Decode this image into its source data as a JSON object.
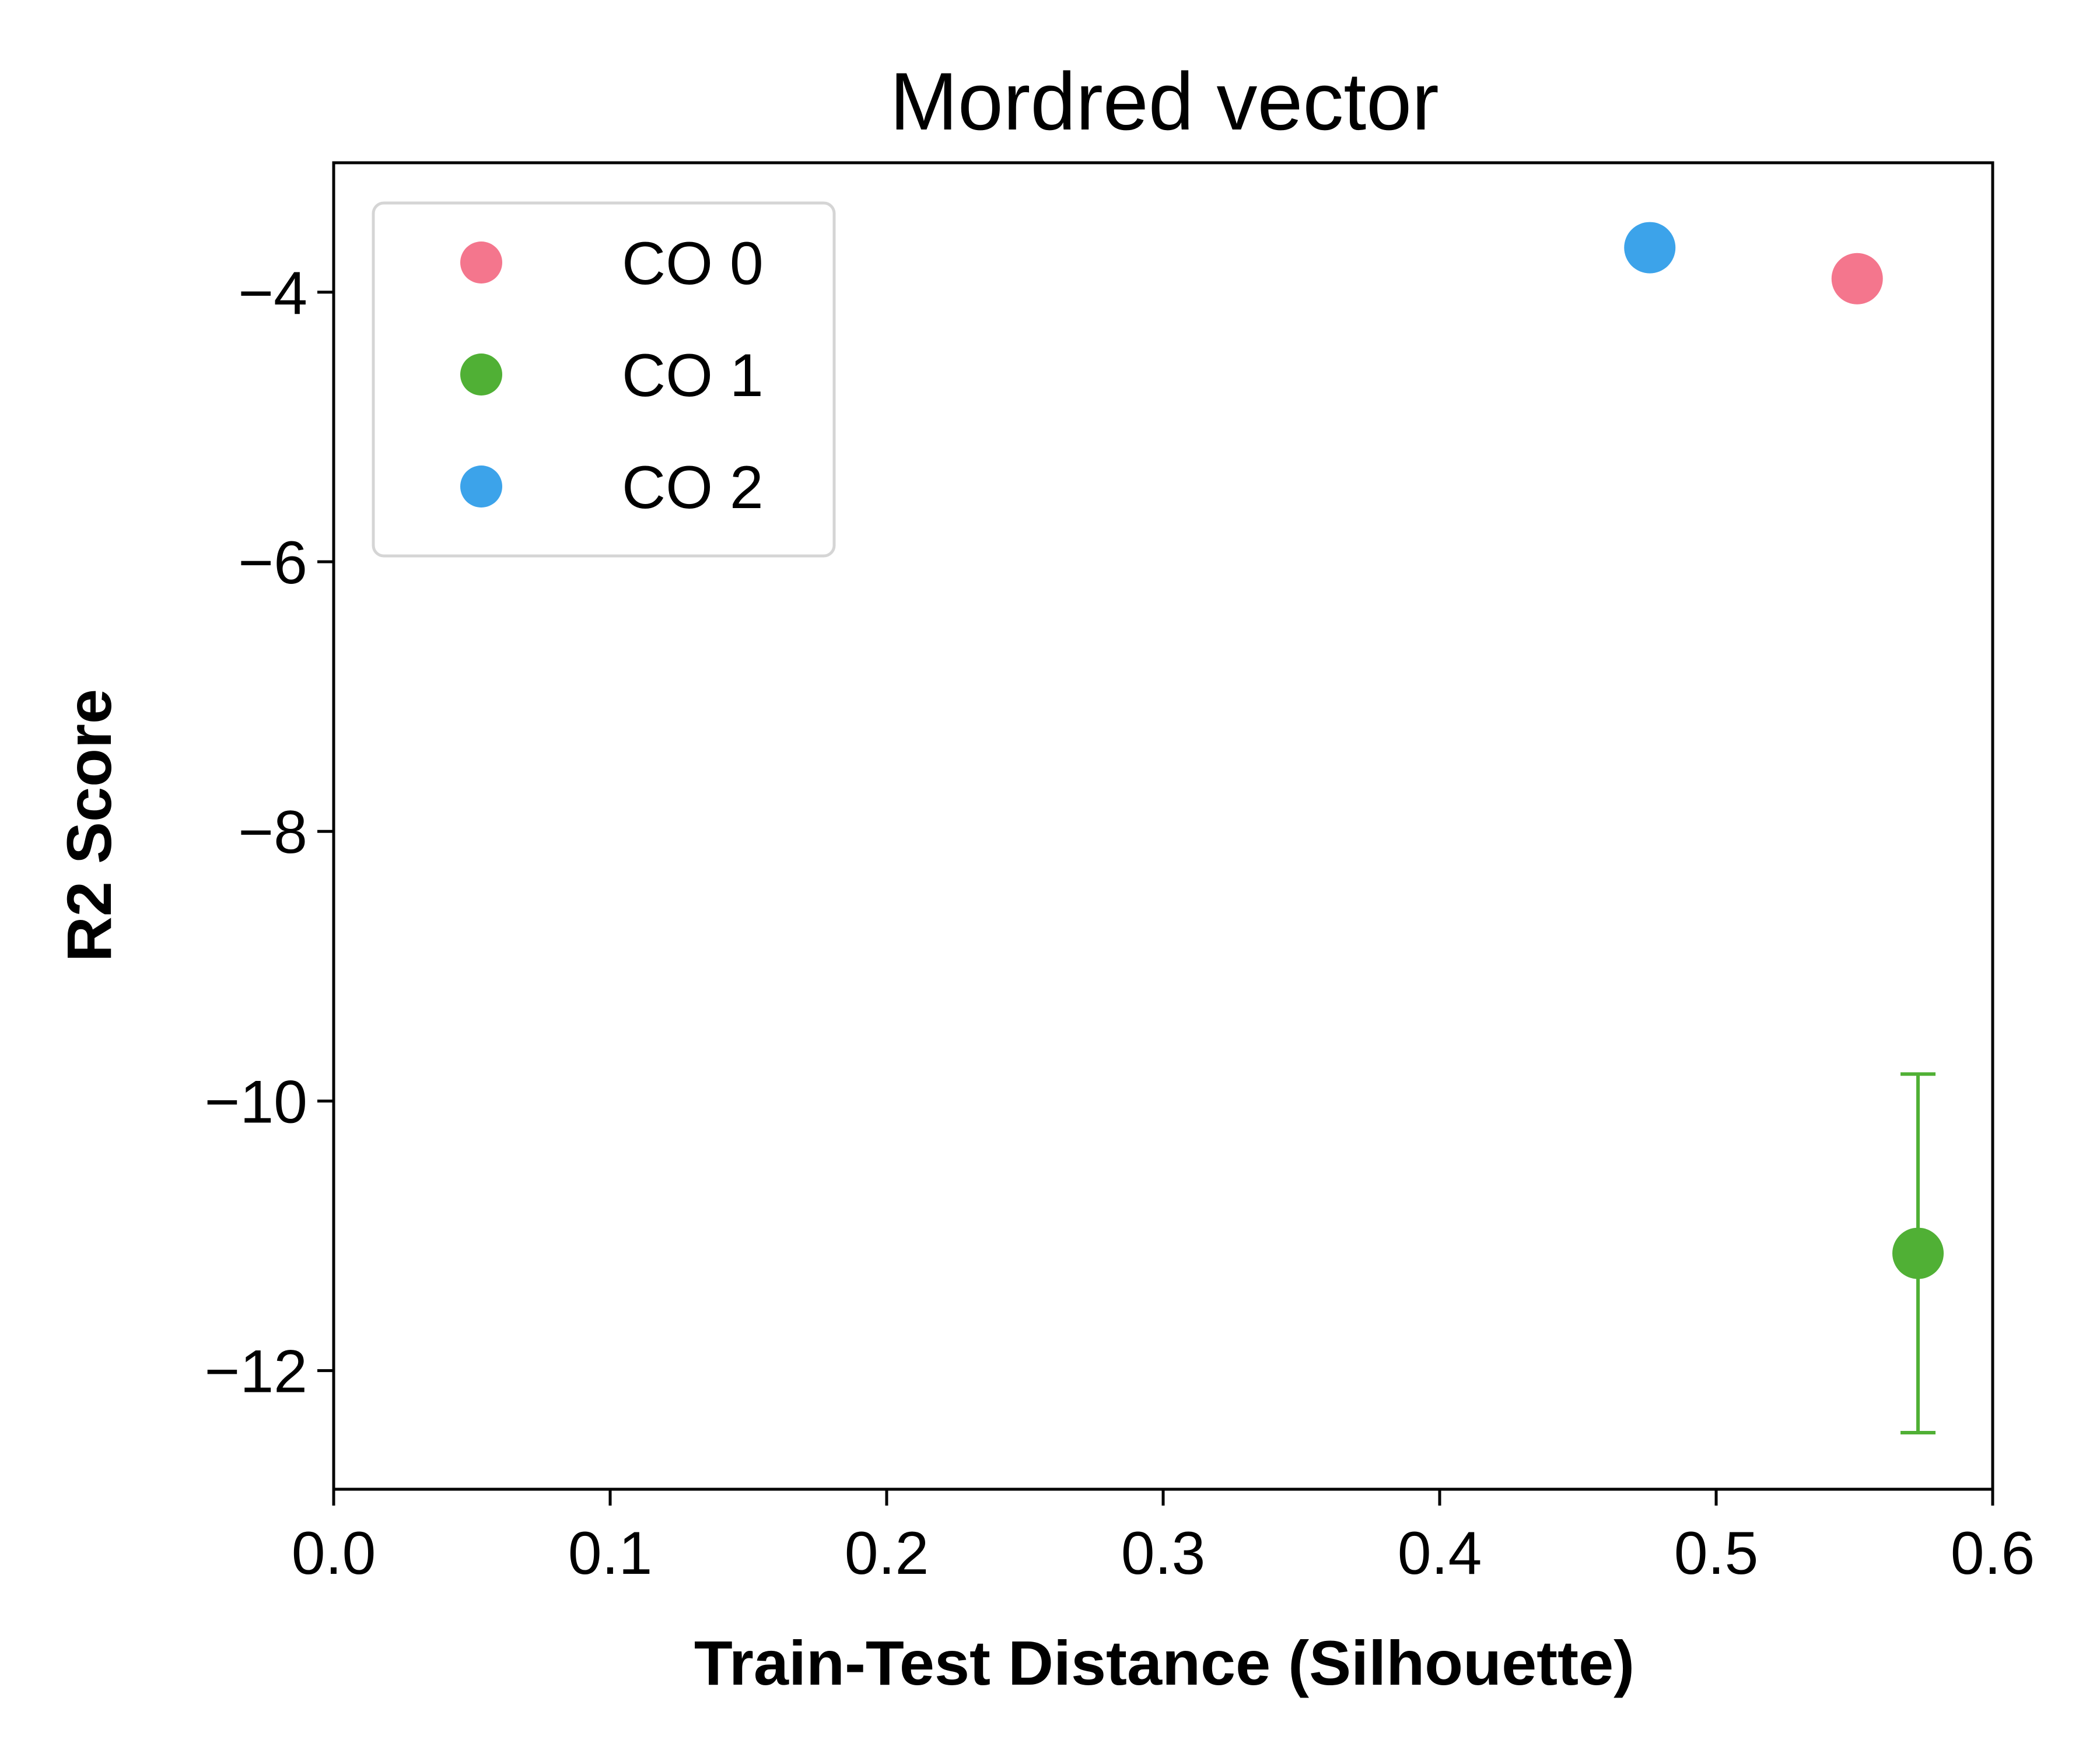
{
  "chart_data": {
    "type": "scatter",
    "title": "Mordred vector",
    "xlabel": "Train-Test Distance (Silhouette)",
    "ylabel": "R2 Score",
    "xlim": [
      0.0,
      0.6
    ],
    "ylim": [
      -12.88,
      -3.04
    ],
    "xticks": [
      0.0,
      0.1,
      0.2,
      0.3,
      0.4,
      0.5,
      0.6
    ],
    "xtick_labels": [
      "0.0",
      "0.1",
      "0.2",
      "0.3",
      "0.4",
      "0.5",
      "0.6"
    ],
    "yticks": [
      -4,
      -6,
      -8,
      -10,
      -12
    ],
    "ytick_labels": [
      "−4",
      "−6",
      "−8",
      "−10",
      "−12"
    ],
    "grid": false,
    "legend_position": "upper-left",
    "series": [
      {
        "name": "CO 0",
        "color": "#f4768d",
        "x": 0.551,
        "y": -3.9,
        "err": 0.0
      },
      {
        "name": "CO 1",
        "color": "#50b035",
        "x": 0.573,
        "y": -11.13,
        "err": 1.33
      },
      {
        "name": "CO 2",
        "color": "#3ca3ea",
        "x": 0.476,
        "y": -3.67,
        "err": 0.12
      }
    ]
  }
}
